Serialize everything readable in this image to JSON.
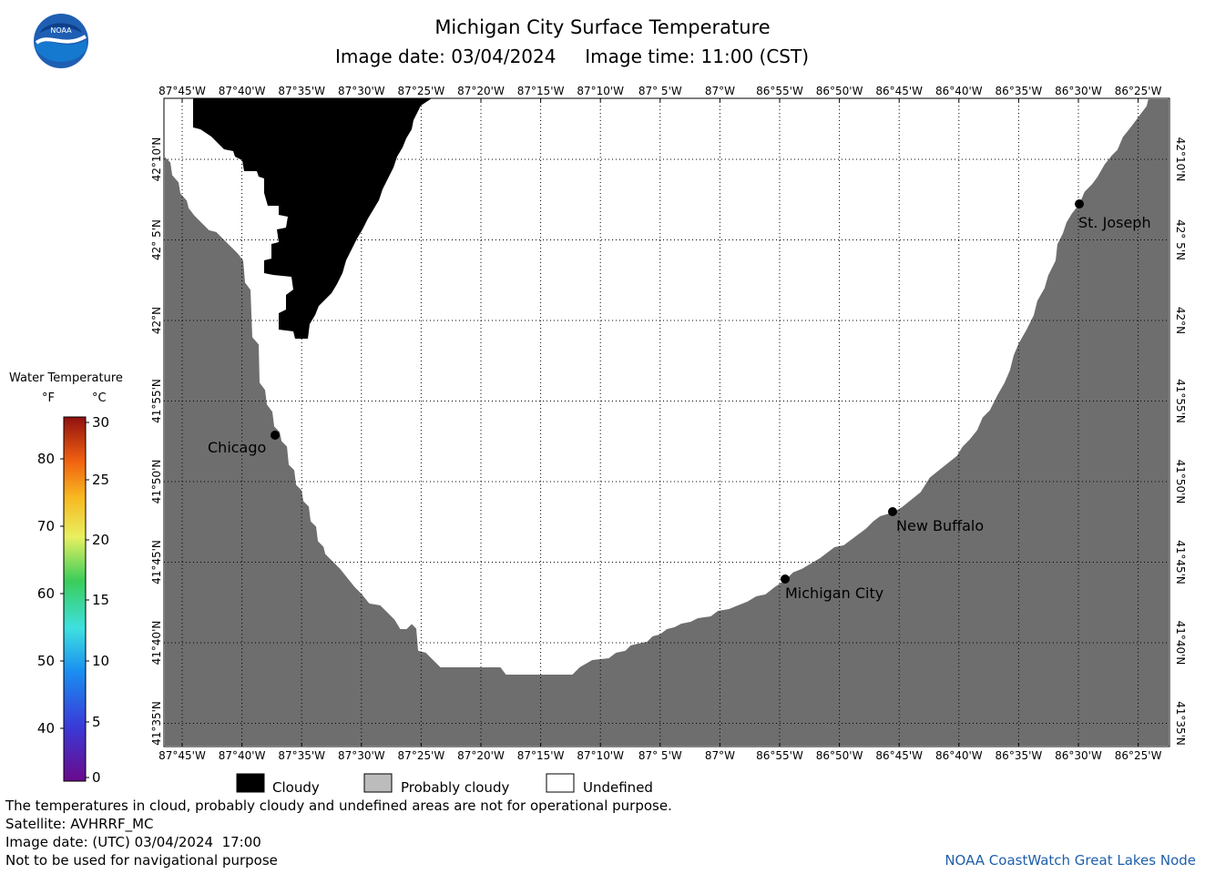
{
  "header": {
    "title": "Michigan City Surface Temperature",
    "date_label": "Image date: 03/04/2024",
    "time_label": "Image time: 11:00 (CST)"
  },
  "logo": {
    "text": "NOAA",
    "icon": "noaa-logo-icon"
  },
  "map": {
    "lon_labels": [
      "87°45'W",
      "87°40'W",
      "87°35'W",
      "87°30'W",
      "87°25'W",
      "87°20'W",
      "87°15'W",
      "87°10'W",
      "87° 5'W",
      "87°W",
      "86°55'W",
      "86°50'W",
      "86°45'W",
      "86°40'W",
      "86°35'W",
      "86°30'W",
      "86°25'W"
    ],
    "lat_labels": [
      "42°10'N",
      "42° 5'N",
      "42°N",
      "41°55'N",
      "41°50'N",
      "41°45'N",
      "41°40'N",
      "41°35'N"
    ],
    "cities": [
      {
        "name": "Chicago"
      },
      {
        "name": "St. Joseph"
      },
      {
        "name": "New Buffalo"
      },
      {
        "name": "Michigan City"
      }
    ],
    "colors": {
      "land": "#6e6e6e",
      "cloud": "#000000",
      "undefined": "#ffffff",
      "probably_cloudy": "#bcbcbc"
    }
  },
  "legend": {
    "title": "Water Temperature",
    "unit_f": "°F",
    "unit_c": "°C",
    "f_ticks": [
      "80",
      "70",
      "60",
      "50",
      "40"
    ],
    "c_ticks": [
      "30",
      "25",
      "20",
      "15",
      "10",
      "5",
      "0"
    ],
    "categories": [
      {
        "label": "Cloudy",
        "color": "#000000"
      },
      {
        "label": "Probably cloudy",
        "color": "#bcbcbc"
      },
      {
        "label": "Undefined",
        "color": "#ffffff"
      }
    ]
  },
  "notes": {
    "line1": "The temperatures in cloud, probably cloudy and undefined areas are not for operational purpose.",
    "line2": "Satellite: AVHRRF_MC",
    "line3": "Image date: (UTC) 03/04/2024  17:00",
    "line4": "Not to be used for navigational purpose"
  },
  "credit": "NOAA CoastWatch Great Lakes Node"
}
